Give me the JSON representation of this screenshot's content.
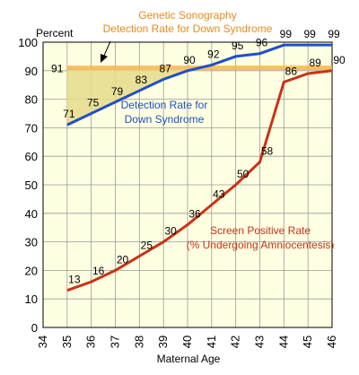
{
  "chart_data": {
    "type": "line",
    "title": [
      "Genetic Sonography",
      "Detection Rate for Down Syndrome"
    ],
    "xlabel": "Maternal Age",
    "ylabel": "Percent",
    "xlim": [
      34,
      46
    ],
    "ylim": [
      0,
      100
    ],
    "xticks": [
      "34",
      "35",
      "36",
      "37",
      "38",
      "39",
      "40",
      "41",
      "42",
      "43",
      "44",
      "45",
      "46"
    ],
    "yticks": [
      "0",
      "10",
      "20",
      "30",
      "40",
      "50",
      "60",
      "70",
      "80",
      "90",
      "100"
    ],
    "grid": true,
    "colors": {
      "plot_bg": "#ffffe1",
      "grid": "#9a9a9a",
      "detection": "#1f4fc8",
      "screen": "#c83218",
      "sonography": "#f6b54d",
      "sonography_fill": "#e6dc8c",
      "title": "#e98a1a"
    },
    "series": [
      {
        "name": "Detection Rate for Down Syndrome",
        "label_lines": [
          "Detection Rate for",
          "Down Syndrome"
        ],
        "x": [
          35,
          36,
          37,
          38,
          39,
          40,
          41,
          42,
          43,
          44,
          45,
          46
        ],
        "y": [
          71,
          75,
          79,
          83,
          87,
          90,
          92,
          95,
          96,
          99,
          99,
          99
        ]
      },
      {
        "name": "Screen Positive Rate (% Undergoing Amniocentesis)",
        "label_lines": [
          "Screen Positive Rate",
          "(% Undergoing Amniocentesis)"
        ],
        "x": [
          35,
          36,
          37,
          38,
          39,
          40,
          41,
          42,
          43,
          44,
          45,
          46
        ],
        "y": [
          13,
          16,
          20,
          25,
          30,
          36,
          43,
          50,
          58,
          86,
          89,
          90
        ]
      },
      {
        "name": "Genetic Sonography Detection Rate for Down Syndrome",
        "x": [
          35,
          46
        ],
        "y": [
          91,
          91
        ]
      }
    ],
    "data_labels": {
      "detection": [
        "71",
        "75",
        "79",
        "83",
        "87",
        "90",
        "92",
        "95",
        "96",
        "99",
        "99",
        "99"
      ],
      "screen": [
        "13",
        "16",
        "20",
        "25",
        "30",
        "36",
        "43",
        "50",
        "58",
        "86",
        "89",
        "90"
      ],
      "sonography": "91"
    }
  }
}
